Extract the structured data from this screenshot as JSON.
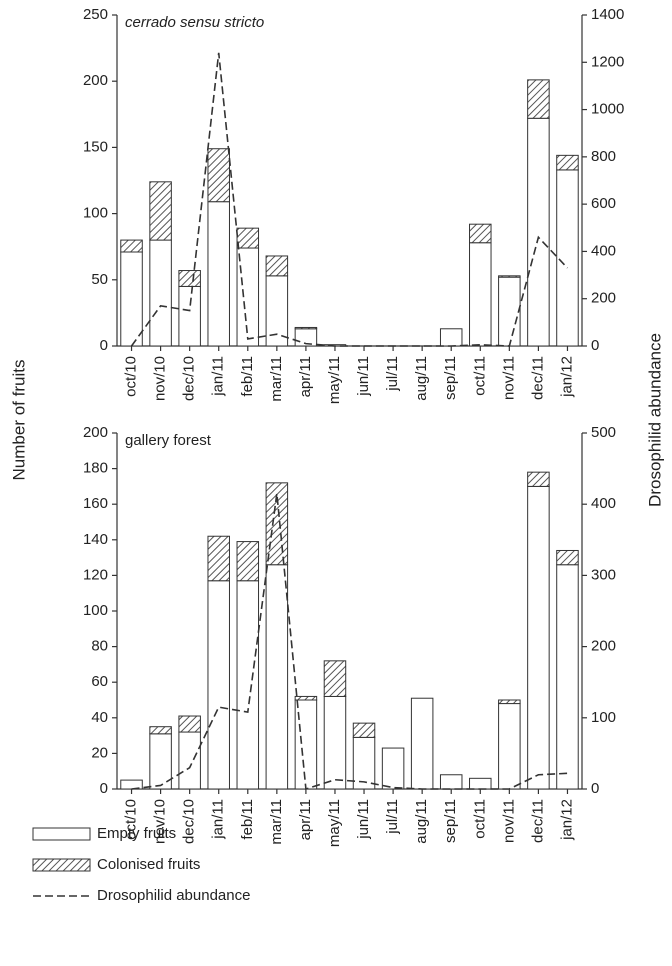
{
  "chart_data": [
    {
      "type": "bar",
      "stacked": true,
      "title": "cerrado sensu stricto",
      "title_italic": true,
      "ylabel": "Number of fruits",
      "y2label": "Drosophilid abundance",
      "categories": [
        "oct/10",
        "nov/10",
        "dec/10",
        "jan/11",
        "feb/11",
        "mar/11",
        "apr/11",
        "may/11",
        "jun/11",
        "jul/11",
        "aug/11",
        "sep/11",
        "oct/11",
        "nov/11",
        "dec/11",
        "jan/12"
      ],
      "series": [
        {
          "name": "Empty fruits",
          "color": "#ffffff",
          "values": [
            71,
            80,
            45,
            109,
            74,
            53,
            13,
            1,
            0,
            0,
            0,
            13,
            78,
            52,
            172,
            133
          ]
        },
        {
          "name": "Colonised fruits",
          "color": "#555555",
          "hatch": true,
          "values": [
            9,
            44,
            12,
            40,
            15,
            15,
            1,
            0,
            0,
            0,
            0,
            0,
            14,
            1,
            29,
            11
          ]
        },
        {
          "name": "Drosophilid abundance",
          "color": "#333333",
          "type": "line",
          "axis": "y2",
          "values": [
            0,
            170,
            150,
            1240,
            30,
            50,
            10,
            0,
            0,
            0,
            0,
            0,
            5,
            0,
            460,
            330
          ]
        }
      ],
      "ylim": [
        0,
        250
      ],
      "yticks": [
        0,
        50,
        100,
        150,
        200,
        250
      ],
      "y2lim": [
        0,
        1400
      ],
      "y2ticks": [
        0,
        200,
        400,
        600,
        800,
        1000,
        1200,
        1400
      ]
    },
    {
      "type": "bar",
      "stacked": true,
      "title": "gallery forest",
      "title_italic": false,
      "categories": [
        "oct/10",
        "nov/10",
        "dec/10",
        "jan/11",
        "feb/11",
        "mar/11",
        "apr/11",
        "may/11",
        "jun/11",
        "jul/11",
        "aug/11",
        "sep/11",
        "oct/11",
        "nov/11",
        "dec/11",
        "jan/12"
      ],
      "series": [
        {
          "name": "Empty fruits",
          "color": "#ffffff",
          "values": [
            5,
            31,
            32,
            117,
            117,
            126,
            50,
            52,
            29,
            23,
            51,
            8,
            6,
            48,
            170,
            126
          ]
        },
        {
          "name": "Colonised fruits",
          "color": "#555555",
          "hatch": true,
          "values": [
            0,
            4,
            9,
            25,
            22,
            46,
            2,
            20,
            8,
            0,
            0,
            0,
            0,
            2,
            8,
            8
          ]
        },
        {
          "name": "Drosophilid abundance",
          "color": "#333333",
          "type": "line",
          "axis": "y2",
          "values": [
            0,
            5,
            30,
            115,
            108,
            415,
            0,
            13,
            10,
            2,
            0,
            0,
            0,
            0,
            20,
            22
          ]
        }
      ],
      "ylim": [
        0,
        200
      ],
      "yticks": [
        0,
        20,
        40,
        60,
        80,
        100,
        120,
        140,
        160,
        180,
        200
      ],
      "y2lim": [
        0,
        500
      ],
      "y2ticks": [
        0,
        100,
        200,
        300,
        400,
        500
      ]
    }
  ]
}
